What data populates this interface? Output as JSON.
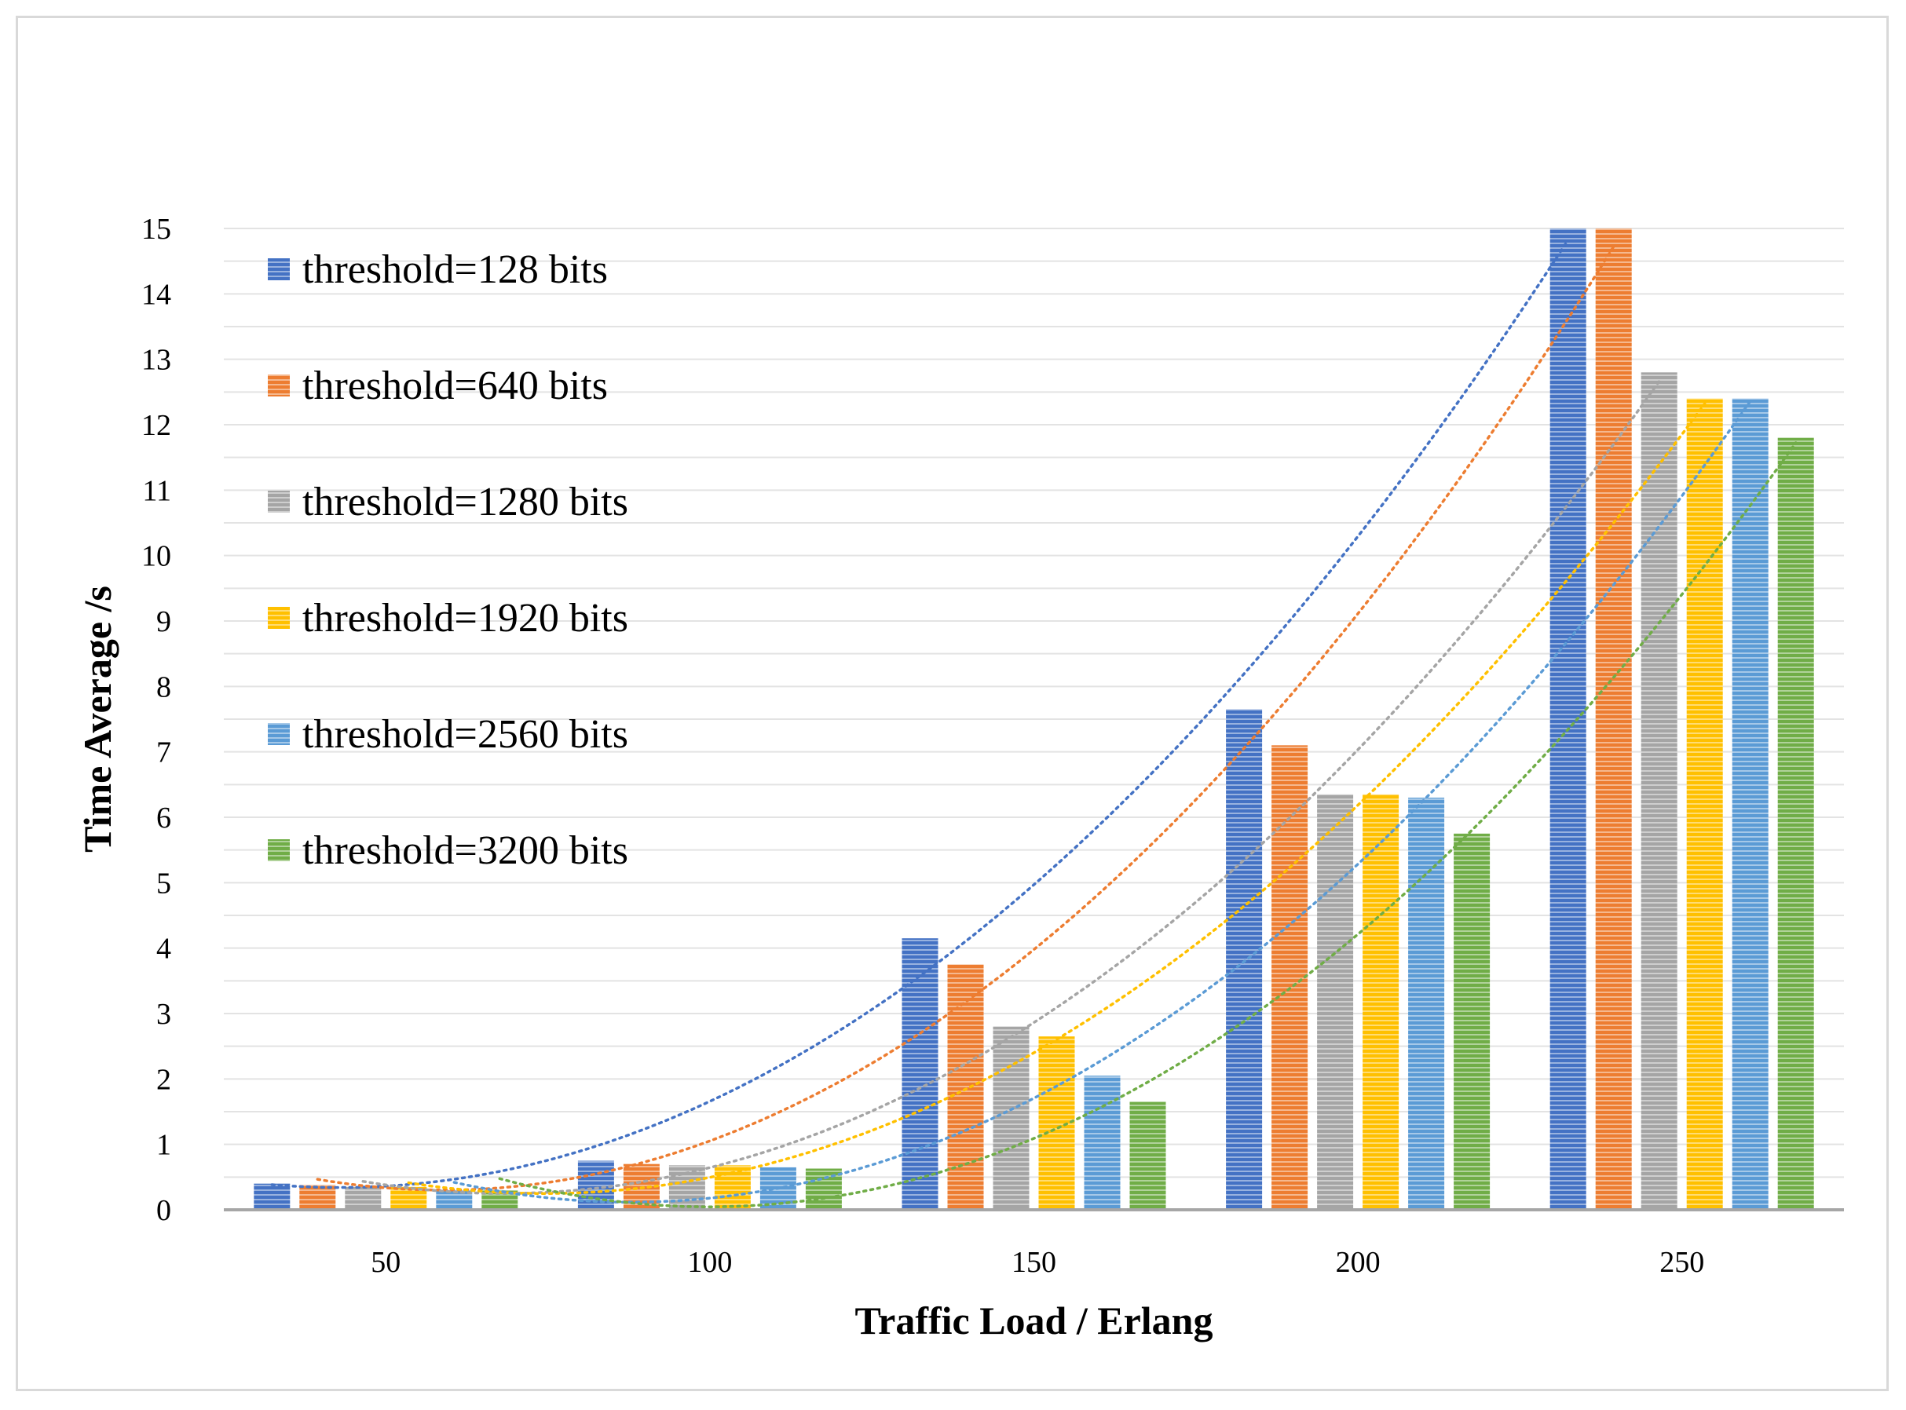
{
  "chart_data": {
    "type": "bar",
    "title": "",
    "xlabel": "Traffic Load / Erlang",
    "ylabel": "Time Average /s",
    "categories": [
      "50",
      "100",
      "150",
      "200",
      "250"
    ],
    "ylim": [
      0,
      15
    ],
    "yticks": [
      "0",
      "1",
      "2",
      "3",
      "4",
      "5",
      "6",
      "7",
      "8",
      "9",
      "10",
      "11",
      "12",
      "13",
      "14",
      "15"
    ],
    "grid": true,
    "legend_position": "top-left",
    "trendlines": "polynomial, dotted, one per series",
    "series": [
      {
        "name": "threshold=128 bits",
        "color": "#4472c4",
        "values": [
          0.4,
          0.75,
          4.15,
          7.65,
          15.0
        ]
      },
      {
        "name": "threshold=640 bits",
        "color": "#ed7d31",
        "values": [
          0.38,
          0.7,
          3.75,
          7.1,
          15.0
        ]
      },
      {
        "name": "threshold=1280 bits",
        "color": "#a5a5a5",
        "values": [
          0.35,
          0.68,
          2.8,
          6.35,
          12.8
        ]
      },
      {
        "name": "threshold=1920 bits",
        "color": "#ffc000",
        "values": [
          0.35,
          0.68,
          2.65,
          6.35,
          12.4
        ]
      },
      {
        "name": "threshold=2560 bits",
        "color": "#5b9bd5",
        "values": [
          0.3,
          0.65,
          2.05,
          6.3,
          12.4
        ]
      },
      {
        "name": "threshold=3200 bits",
        "color": "#70ad47",
        "values": [
          0.3,
          0.63,
          1.65,
          5.75,
          11.8
        ]
      }
    ]
  }
}
